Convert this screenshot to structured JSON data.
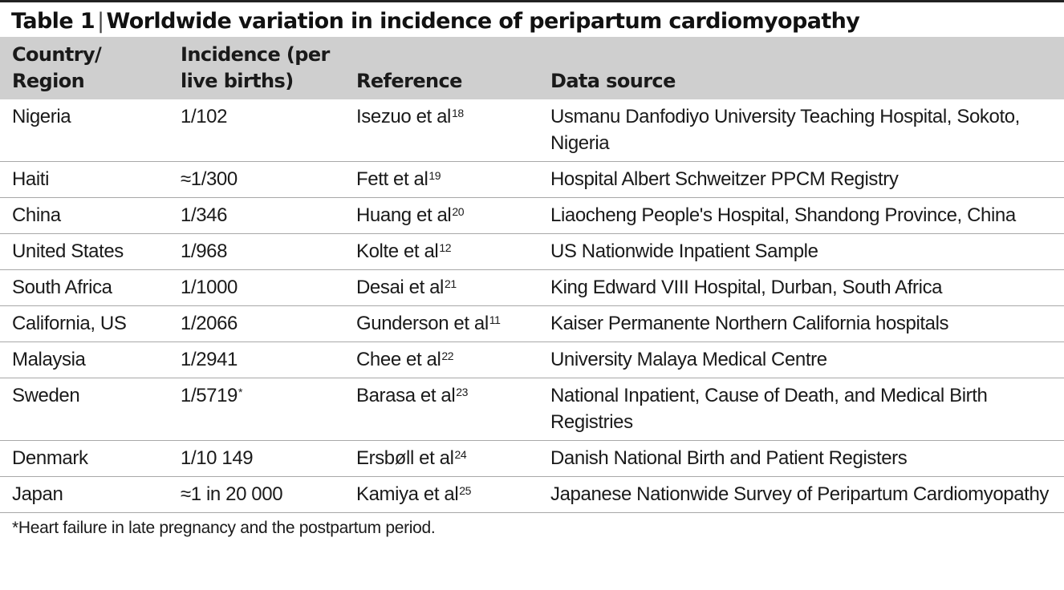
{
  "title": {
    "label": "Table 1",
    "separator": "|",
    "text": "Worldwide variation in incidence of peripartum cardiomyopathy"
  },
  "headers": {
    "country": [
      "Country/",
      "Region"
    ],
    "incidence": [
      "Incidence (per",
      "live births)"
    ],
    "reference": "Reference",
    "source": "Data source"
  },
  "rows": [
    {
      "country": "Nigeria",
      "incidence": "1/102",
      "incidence_note": "",
      "reference": "Isezuo et al",
      "ref_num": "18",
      "source": "Usmanu Danfodiyo University Teaching Hospital, Sokoto, Nigeria"
    },
    {
      "country": "Haiti",
      "incidence": "≈1/300",
      "incidence_note": "",
      "reference": "Fett et al",
      "ref_num": "19",
      "source": "Hospital Albert Schweitzer PPCM Registry"
    },
    {
      "country": "China",
      "incidence": "1/346",
      "incidence_note": "",
      "reference": "Huang et al",
      "ref_num": "20",
      "source": "Liaocheng People's Hospital, Shandong Province, China"
    },
    {
      "country": "United States",
      "incidence": "1/968",
      "incidence_note": "",
      "reference": "Kolte et al",
      "ref_num": "12",
      "source": "US Nationwide Inpatient Sample"
    },
    {
      "country": "South Africa",
      "incidence": "1/1000",
      "incidence_note": "",
      "reference": "Desai et al",
      "ref_num": "21",
      "source": "King Edward VIII Hospital, Durban, South Africa"
    },
    {
      "country": "California, US",
      "incidence": "1/2066",
      "incidence_note": "",
      "reference": "Gunderson et al",
      "ref_num": "11",
      "source": "Kaiser Permanente Northern California hospitals"
    },
    {
      "country": "Malaysia",
      "incidence": "1/2941",
      "incidence_note": "",
      "reference": "Chee et al",
      "ref_num": "22",
      "source": "University Malaya Medical Centre"
    },
    {
      "country": "Sweden",
      "incidence": "1/5719",
      "incidence_note": "*",
      "reference": "Barasa et al",
      "ref_num": "23",
      "source": "National Inpatient, Cause of Death, and Medical Birth Registries"
    },
    {
      "country": "Denmark",
      "incidence": "1/10 149",
      "incidence_note": "",
      "reference": "Ersbøll et al",
      "ref_num": "24",
      "source": "Danish National Birth and Patient Registers"
    },
    {
      "country": "Japan",
      "incidence": "≈1 in 20 000",
      "incidence_note": "",
      "reference": "Kamiya et al",
      "ref_num": "25",
      "source": "Japanese Nationwide Survey of Peripartum Cardiomyopathy"
    }
  ],
  "footnote": "*Heart failure in late pregnancy and the postpartum period."
}
